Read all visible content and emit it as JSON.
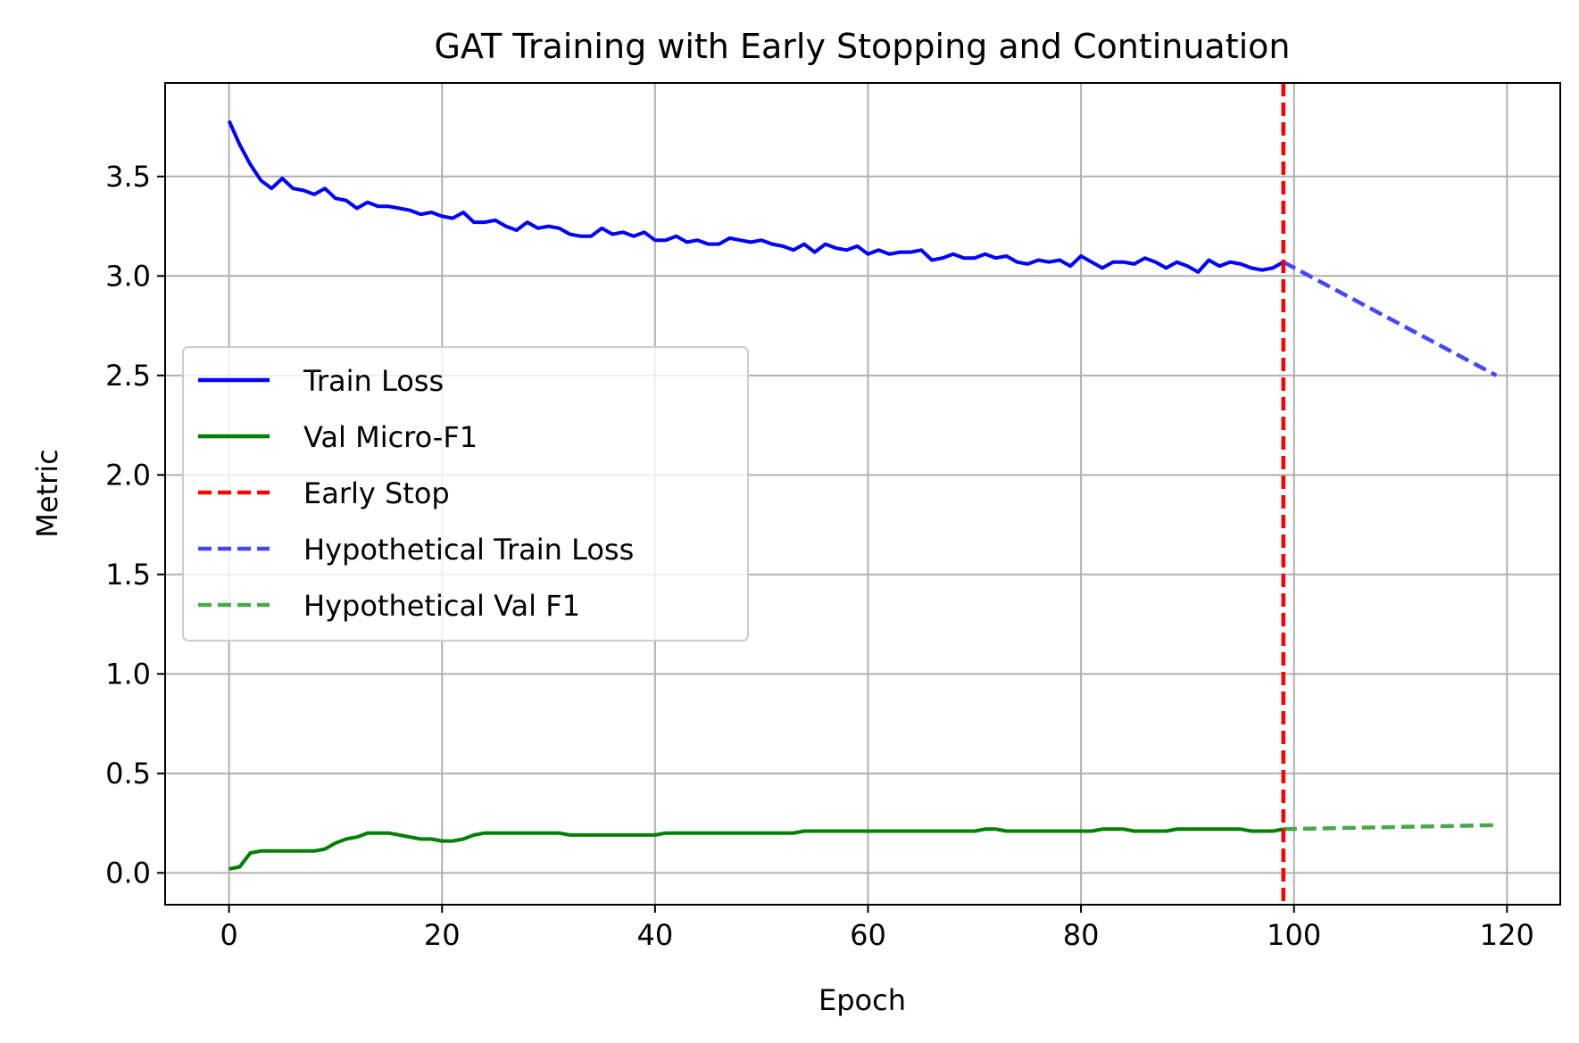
{
  "chart_data": {
    "type": "line",
    "title": "GAT Training with Early Stopping and Continuation",
    "xlabel": "Epoch",
    "ylabel": "Metric",
    "xlim": [
      -6,
      125
    ],
    "ylim": [
      -0.16,
      3.97
    ],
    "xticks": [
      0,
      20,
      40,
      60,
      80,
      100,
      120
    ],
    "yticks": [
      0.0,
      0.5,
      1.0,
      1.5,
      2.0,
      2.5,
      3.0,
      3.5
    ],
    "xtick_labels": [
      "0",
      "20",
      "40",
      "60",
      "80",
      "100",
      "120"
    ],
    "ytick_labels": [
      "0.0",
      "0.5",
      "1.0",
      "1.5",
      "2.0",
      "2.5",
      "3.0",
      "3.5"
    ],
    "grid": true,
    "legend_position": "center-left",
    "early_stop_epoch": 99,
    "series": [
      {
        "name": "Train Loss",
        "color": "#0000ff",
        "style": "solid",
        "x_start": 0,
        "values": [
          3.78,
          3.66,
          3.56,
          3.48,
          3.44,
          3.49,
          3.44,
          3.43,
          3.41,
          3.44,
          3.39,
          3.38,
          3.34,
          3.37,
          3.35,
          3.35,
          3.34,
          3.33,
          3.31,
          3.32,
          3.3,
          3.29,
          3.32,
          3.27,
          3.27,
          3.28,
          3.25,
          3.23,
          3.27,
          3.24,
          3.25,
          3.24,
          3.21,
          3.2,
          3.2,
          3.24,
          3.21,
          3.22,
          3.2,
          3.22,
          3.18,
          3.18,
          3.2,
          3.17,
          3.18,
          3.16,
          3.16,
          3.19,
          3.18,
          3.17,
          3.18,
          3.16,
          3.15,
          3.13,
          3.16,
          3.12,
          3.16,
          3.14,
          3.13,
          3.15,
          3.11,
          3.13,
          3.11,
          3.12,
          3.12,
          3.13,
          3.08,
          3.09,
          3.11,
          3.09,
          3.09,
          3.11,
          3.09,
          3.1,
          3.07,
          3.06,
          3.08,
          3.07,
          3.08,
          3.05,
          3.1,
          3.07,
          3.04,
          3.07,
          3.07,
          3.06,
          3.09,
          3.07,
          3.04,
          3.07,
          3.05,
          3.02,
          3.08,
          3.05,
          3.07,
          3.06,
          3.04,
          3.03,
          3.04,
          3.07
        ]
      },
      {
        "name": "Val Micro-F1",
        "color": "#008000",
        "style": "solid",
        "x_start": 0,
        "values": [
          0.02,
          0.03,
          0.1,
          0.11,
          0.11,
          0.11,
          0.11,
          0.11,
          0.11,
          0.12,
          0.15,
          0.17,
          0.18,
          0.2,
          0.2,
          0.2,
          0.19,
          0.18,
          0.17,
          0.17,
          0.16,
          0.16,
          0.17,
          0.19,
          0.2,
          0.2,
          0.2,
          0.2,
          0.2,
          0.2,
          0.2,
          0.2,
          0.19,
          0.19,
          0.19,
          0.19,
          0.19,
          0.19,
          0.19,
          0.19,
          0.19,
          0.2,
          0.2,
          0.2,
          0.2,
          0.2,
          0.2,
          0.2,
          0.2,
          0.2,
          0.2,
          0.2,
          0.2,
          0.2,
          0.21,
          0.21,
          0.21,
          0.21,
          0.21,
          0.21,
          0.21,
          0.21,
          0.21,
          0.21,
          0.21,
          0.21,
          0.21,
          0.21,
          0.21,
          0.21,
          0.21,
          0.22,
          0.22,
          0.21,
          0.21,
          0.21,
          0.21,
          0.21,
          0.21,
          0.21,
          0.21,
          0.21,
          0.22,
          0.22,
          0.22,
          0.21,
          0.21,
          0.21,
          0.21,
          0.22,
          0.22,
          0.22,
          0.22,
          0.22,
          0.22,
          0.22,
          0.21,
          0.21,
          0.21,
          0.22
        ]
      },
      {
        "name": "Hypothetical Train Loss",
        "color": "#4646ff",
        "style": "dashed",
        "x": [
          99,
          119
        ],
        "values": [
          3.07,
          2.5
        ]
      },
      {
        "name": "Hypothetical Val F1",
        "color": "#4aa84a",
        "style": "dashed",
        "x": [
          99,
          119
        ],
        "values": [
          0.22,
          0.24
        ]
      }
    ],
    "vlines": [
      {
        "name": "Early Stop",
        "x": 99,
        "color": "#ff0000",
        "style": "dashed"
      }
    ],
    "legend": [
      {
        "label": "Train Loss",
        "color": "#0000ff",
        "style": "solid"
      },
      {
        "label": "Val Micro-F1",
        "color": "#008000",
        "style": "solid"
      },
      {
        "label": "Early Stop",
        "color": "#ff0000",
        "style": "dashed"
      },
      {
        "label": "Hypothetical Train Loss",
        "color": "#4646ff",
        "style": "dashed"
      },
      {
        "label": "Hypothetical Val F1",
        "color": "#4aa84a",
        "style": "dashed"
      }
    ]
  }
}
